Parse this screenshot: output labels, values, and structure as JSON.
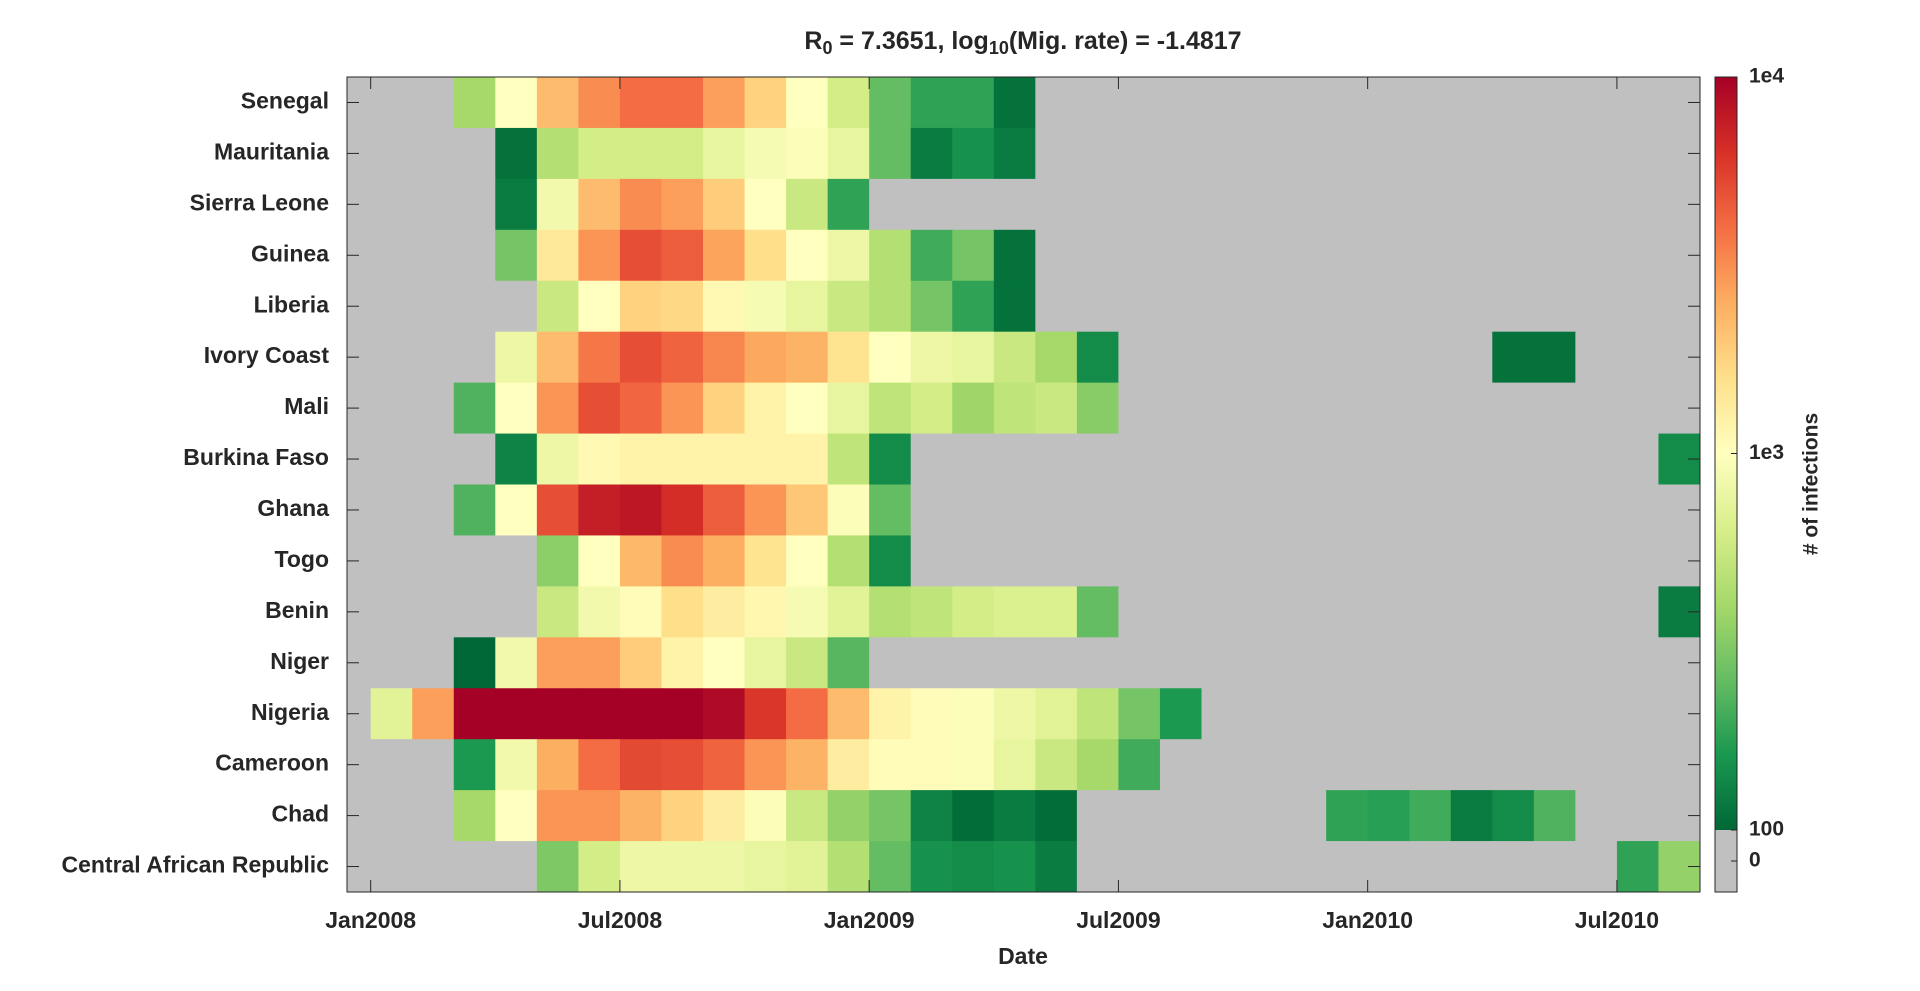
{
  "chart_data": {
    "type": "heatmap",
    "title_parts": [
      "R",
      "0",
      " = 7.3651, log",
      "10",
      "(Mig. rate) = -1.4817"
    ],
    "x_label": "Date",
    "colorbar_label": "# of infections",
    "categories": [
      "Senegal",
      "Mauritania",
      "Sierra Leone",
      "Guinea",
      "Liberia",
      "Ivory Coast",
      "Mali",
      "Burkina Faso",
      "Ghana",
      "Togo",
      "Benin",
      "Niger",
      "Nigeria",
      "Cameroon",
      "Chad",
      "Central African Republic"
    ],
    "x": [
      0,
      1,
      2,
      3,
      4,
      5,
      6,
      7,
      8,
      9,
      10,
      11,
      12,
      13,
      14,
      15,
      16,
      17,
      18,
      19,
      20,
      21,
      22,
      23,
      24,
      25,
      26,
      27,
      28,
      29,
      30,
      31
    ],
    "xlim": [
      -0.57,
      32
    ],
    "xticks": [
      {
        "value": 0,
        "label": "Jan2008"
      },
      {
        "value": 6,
        "label": "Jul2008"
      },
      {
        "value": 12,
        "label": "Jan2009"
      },
      {
        "value": 18,
        "label": "Jul2009"
      },
      {
        "value": 24,
        "label": "Jan2010"
      },
      {
        "value": 30,
        "label": "Jul2010"
      }
    ],
    "values": [
      [
        0,
        0,
        400,
        1000,
        2200,
        3200,
        4000,
        4000,
        2800,
        1800,
        1000,
        600,
        250,
        180,
        180,
        110,
        0,
        0,
        0,
        0,
        0,
        0,
        0,
        0,
        0,
        0,
        0,
        0,
        0,
        0,
        0,
        0
      ],
      [
        0,
        0,
        0,
        110,
        450,
        600,
        600,
        600,
        750,
        900,
        950,
        750,
        250,
        120,
        150,
        120,
        0,
        0,
        0,
        0,
        0,
        0,
        0,
        0,
        0,
        0,
        0,
        0,
        0,
        0,
        0,
        0
      ],
      [
        0,
        0,
        0,
        120,
        850,
        2200,
        3200,
        2800,
        1900,
        1000,
        550,
        180,
        0,
        0,
        0,
        0,
        0,
        0,
        0,
        0,
        0,
        0,
        0,
        0,
        0,
        0,
        0,
        0,
        0,
        0,
        0,
        0
      ],
      [
        0,
        0,
        0,
        280,
        1400,
        3000,
        5000,
        4500,
        2700,
        1600,
        1000,
        800,
        450,
        200,
        280,
        110,
        0,
        0,
        0,
        0,
        0,
        0,
        0,
        0,
        0,
        0,
        0,
        0,
        0,
        0,
        0,
        0
      ],
      [
        0,
        0,
        0,
        0,
        550,
        1000,
        1800,
        1700,
        1100,
        900,
        750,
        550,
        450,
        280,
        180,
        110,
        0,
        0,
        0,
        0,
        0,
        0,
        0,
        0,
        0,
        0,
        0,
        0,
        0,
        0,
        0,
        0
      ],
      [
        0,
        0,
        0,
        800,
        2200,
        3700,
        5000,
        4300,
        3300,
        2600,
        2400,
        1500,
        1000,
        800,
        750,
        550,
        400,
        140,
        0,
        0,
        0,
        0,
        0,
        0,
        0,
        0,
        0,
        110,
        110,
        0,
        0,
        0
      ],
      [
        0,
        0,
        220,
        1000,
        3000,
        5000,
        4200,
        3000,
        1800,
        1200,
        1000,
        750,
        500,
        600,
        380,
        500,
        550,
        320,
        0,
        0,
        0,
        0,
        0,
        0,
        0,
        0,
        0,
        0,
        0,
        0,
        0,
        0
      ],
      [
        0,
        0,
        0,
        130,
        800,
        1100,
        1200,
        1200,
        1200,
        1200,
        1200,
        500,
        140,
        0,
        0,
        0,
        0,
        0,
        0,
        0,
        0,
        0,
        0,
        0,
        0,
        0,
        0,
        0,
        0,
        0,
        0,
        140
      ],
      [
        0,
        0,
        220,
        1000,
        5000,
        7500,
        8000,
        6500,
        4500,
        3000,
        2000,
        950,
        250,
        0,
        0,
        0,
        0,
        0,
        0,
        0,
        0,
        0,
        0,
        0,
        0,
        0,
        0,
        0,
        0,
        0,
        0,
        0
      ],
      [
        0,
        0,
        0,
        0,
        330,
        1000,
        2300,
        3200,
        2500,
        1500,
        1000,
        450,
        140,
        0,
        0,
        0,
        0,
        0,
        0,
        0,
        0,
        0,
        0,
        0,
        0,
        0,
        0,
        0,
        0,
        0,
        0,
        0
      ],
      [
        0,
        0,
        0,
        0,
        550,
        850,
        1050,
        1600,
        1300,
        1150,
        900,
        700,
        450,
        500,
        600,
        650,
        650,
        250,
        0,
        0,
        0,
        0,
        0,
        0,
        0,
        0,
        0,
        0,
        0,
        0,
        0,
        120
      ],
      [
        0,
        0,
        100,
        850,
        2800,
        2800,
        1900,
        1200,
        1000,
        750,
        550,
        230,
        0,
        0,
        0,
        0,
        0,
        0,
        0,
        0,
        0,
        0,
        0,
        0,
        0,
        0,
        0,
        0,
        0,
        0,
        0,
        0
      ],
      [
        700,
        2800,
        10000,
        10000,
        10000,
        10000,
        10000,
        10000,
        9000,
        6000,
        4000,
        2200,
        1200,
        1050,
        950,
        800,
        700,
        500,
        280,
        160,
        0,
        0,
        0,
        0,
        0,
        0,
        0,
        0,
        0,
        0,
        0,
        0
      ],
      [
        0,
        0,
        160,
        850,
        2500,
        4000,
        5200,
        5000,
        4300,
        3000,
        2400,
        1300,
        1050,
        1050,
        950,
        750,
        550,
        400,
        200,
        0,
        0,
        0,
        0,
        0,
        0,
        0,
        0,
        0,
        0,
        0,
        0,
        0
      ],
      [
        0,
        0,
        400,
        1000,
        3000,
        3000,
        2400,
        1800,
        1300,
        950,
        550,
        350,
        280,
        130,
        105,
        120,
        105,
        0,
        0,
        0,
        0,
        0,
        0,
        180,
        170,
        200,
        120,
        140,
        220,
        0,
        0,
        0
      ],
      [
        0,
        0,
        0,
        0,
        300,
        600,
        800,
        800,
        800,
        750,
        700,
        450,
        250,
        150,
        140,
        150,
        120,
        0,
        0,
        0,
        0,
        0,
        0,
        0,
        0,
        0,
        0,
        0,
        0,
        0,
        180,
        350
      ]
    ],
    "clim": [
      100,
      10000
    ],
    "log_color_scale": true,
    "colormap": [
      "#006837",
      "#1a9850",
      "#66bd63",
      "#a6d96a",
      "#d9ef8b",
      "#ffffbf",
      "#fee08b",
      "#fdae61",
      "#f46d43",
      "#d73027",
      "#a50026"
    ],
    "zero_color": "#c0c0c0",
    "cticks": [
      0,
      100,
      {
        "value": 1000,
        "label": "1e3"
      },
      {
        "value": 10000,
        "label": "1e4"
      }
    ]
  }
}
